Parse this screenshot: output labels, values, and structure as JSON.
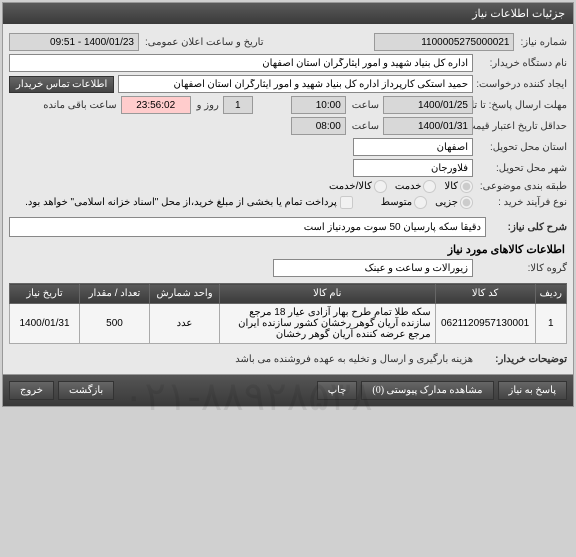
{
  "panel": {
    "title": "جزئیات اطلاعات نیاز"
  },
  "labels": {
    "need_no": "شماره نیاز:",
    "pub_datetime": "تاریخ و ساعت اعلان عمومی:",
    "buyer_org": "نام دستگاه خریدار:",
    "creator": "ایجاد کننده درخواست:",
    "contact_btn": "اطلاعات تماس خریدار",
    "reply_deadline": "مهلت ارسال پاسخ: تا تاریخ:",
    "time1": "ساعت",
    "days": "روز و",
    "remain": "ساعت باقی مانده",
    "price_valid": "حداقل تاریخ اعتبار قیمت: تا تاریخ:",
    "time2": "ساعت",
    "delivery_prov": "استان محل تحویل:",
    "delivery_city": "شهر محل تحویل:",
    "category": "طبقه بندی موضوعی:",
    "purchase_type": "نوع فرآیند خرید :",
    "partial_pay": "پرداخت تمام یا بخشی از مبلغ خرید،از محل \"اسناد خزانه اسلامی\" خواهد بود.",
    "general_desc": "شرح کلی نیاز:",
    "items_info": "اطلاعات کالاهای مورد نیاز",
    "item_group": "گروه کالا:",
    "buyer_notes": "توضیحات خریدار:"
  },
  "values": {
    "need_no": "1100005275000021",
    "pub_datetime": "1400/01/23 - 09:51",
    "buyer_org": "اداره کل بنیاد شهید و امور ایثارگران استان اصفهان",
    "creator": "حمید استکی کارپرداز اداره کل بنیاد شهید و امور ایثارگران استان اصفهان",
    "reply_date": "1400/01/25",
    "reply_time": "10:00",
    "days": "1",
    "countdown": "23:56:02",
    "price_date": "1400/01/31",
    "price_time": "08:00",
    "province": "اصفهان",
    "city": "فلاورجان",
    "desc": "دقیقا سکه پارسیان 50 سوت موردنیاز است",
    "item_group": "زیورآلات و ساعت و عینک",
    "buyer_notes": "هزینه بارگیری و ارسال و تخلیه به عهده فروشنده می باشد"
  },
  "category_radios": {
    "r1": "کالا",
    "r2": "خدمت",
    "r3": "کالا/خدمت"
  },
  "purchase_radios": {
    "r1": "جزیی",
    "r2": "متوسط"
  },
  "table": {
    "headers": {
      "row": "ردیف",
      "code": "کد کالا",
      "name": "نام کالا",
      "unit": "واحد شمارش",
      "qty": "تعداد / مقدار",
      "date": "تاریخ نیاز"
    },
    "rows": [
      {
        "idx": "1",
        "code": "0621120957130001",
        "name": "سکه طلا تمام طرح بهار آزادی عیار 18 مرجع سازنده آریان گوهر رخشان کشور سازنده ایران مرجع عرضه کننده آریان گوهر رخشان",
        "unit": "عدد",
        "qty": "500",
        "date": "1400/01/31"
      }
    ]
  },
  "footer": {
    "reply": "پاسخ به نیاز",
    "attach": "مشاهده مدارک پیوستی (0)",
    "print": "چاپ",
    "back": "بازگشت",
    "exit": "خروج"
  },
  "watermark": "۰۲۱-۸۸۹۲۸۵۳۸"
}
